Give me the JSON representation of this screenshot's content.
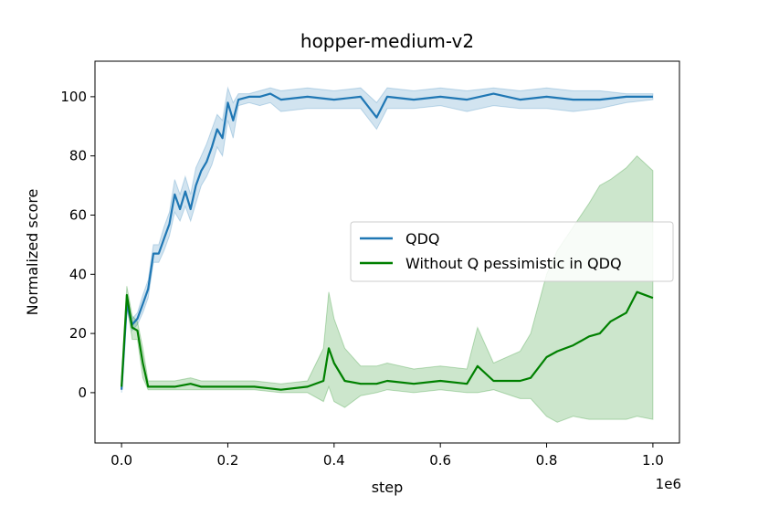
{
  "chart_data": {
    "type": "line",
    "title": "hopper-medium-v2",
    "xlabel": "step",
    "ylabel": "Normalized score",
    "x_offset_text": "1e6",
    "xlim": [
      -0.05,
      1.05
    ],
    "ylim": [
      -17,
      112
    ],
    "xticks": [
      0.0,
      0.2,
      0.4,
      0.6,
      0.8,
      1.0
    ],
    "xtick_labels": [
      "0.0",
      "0.2",
      "0.4",
      "0.6",
      "0.8",
      "1.0"
    ],
    "yticks": [
      0,
      20,
      40,
      60,
      80,
      100
    ],
    "ytick_labels": [
      "0",
      "20",
      "40",
      "60",
      "80",
      "100"
    ],
    "grid": false,
    "legend_position": "center-right",
    "series": [
      {
        "name": "QDQ",
        "color": "#1f77b4",
        "x": [
          0.0,
          0.01,
          0.02,
          0.03,
          0.04,
          0.05,
          0.06,
          0.07,
          0.08,
          0.09,
          0.1,
          0.11,
          0.12,
          0.13,
          0.14,
          0.15,
          0.16,
          0.17,
          0.18,
          0.19,
          0.2,
          0.21,
          0.22,
          0.24,
          0.26,
          0.28,
          0.3,
          0.35,
          0.4,
          0.45,
          0.48,
          0.5,
          0.55,
          0.6,
          0.65,
          0.7,
          0.75,
          0.8,
          0.85,
          0.9,
          0.95,
          1.0
        ],
        "y": [
          1,
          30,
          23,
          25,
          30,
          35,
          47,
          47,
          52,
          57,
          67,
          62,
          68,
          62,
          70,
          75,
          78,
          83,
          89,
          86,
          98,
          92,
          99,
          100,
          100,
          101,
          99,
          100,
          99,
          100,
          93,
          100,
          99,
          100,
          99,
          101,
          99,
          100,
          99,
          99,
          100,
          100
        ],
        "band_low": [
          0,
          28,
          21,
          23,
          27,
          32,
          44,
          44,
          48,
          53,
          61,
          58,
          63,
          58,
          64,
          70,
          73,
          77,
          83,
          80,
          92,
          86,
          97,
          98,
          97,
          98,
          95,
          96,
          96,
          96,
          89,
          96,
          96,
          97,
          95,
          97,
          96,
          96,
          95,
          96,
          98,
          99
        ],
        "band_high": [
          2,
          32,
          25,
          27,
          33,
          38,
          50,
          50,
          56,
          61,
          72,
          67,
          73,
          67,
          76,
          80,
          84,
          89,
          94,
          92,
          103,
          98,
          101,
          101,
          102,
          103,
          102,
          103,
          102,
          103,
          98,
          103,
          102,
          103,
          102,
          103,
          102,
          103,
          102,
          102,
          101,
          101
        ]
      },
      {
        "name": "Without Q pessimistic in QDQ",
        "color": "#008000",
        "x": [
          0.0,
          0.01,
          0.02,
          0.03,
          0.04,
          0.05,
          0.08,
          0.1,
          0.13,
          0.15,
          0.2,
          0.25,
          0.3,
          0.35,
          0.38,
          0.39,
          0.4,
          0.42,
          0.45,
          0.48,
          0.5,
          0.55,
          0.6,
          0.65,
          0.67,
          0.7,
          0.75,
          0.77,
          0.8,
          0.82,
          0.85,
          0.88,
          0.9,
          0.92,
          0.95,
          0.97,
          1.0
        ],
        "y": [
          2,
          33,
          22,
          21,
          10,
          2,
          2,
          2,
          3,
          2,
          2,
          2,
          1,
          2,
          4,
          15,
          10,
          4,
          3,
          3,
          4,
          3,
          4,
          3,
          9,
          4,
          4,
          5,
          12,
          14,
          16,
          19,
          20,
          24,
          27,
          34,
          32
        ],
        "band_low": [
          1,
          30,
          18,
          18,
          5,
          1,
          1,
          1,
          1,
          1,
          1,
          1,
          0,
          0,
          -3,
          2,
          -3,
          -5,
          -1,
          0,
          1,
          0,
          1,
          0,
          0,
          1,
          -2,
          -2,
          -8,
          -10,
          -8,
          -9,
          -9,
          -9,
          -9,
          -8,
          -9
        ],
        "band_high": [
          4,
          36,
          26,
          24,
          15,
          4,
          4,
          4,
          5,
          4,
          4,
          4,
          3,
          4,
          15,
          34,
          25,
          15,
          9,
          9,
          10,
          8,
          9,
          8,
          22,
          10,
          14,
          20,
          40,
          48,
          56,
          64,
          70,
          72,
          76,
          80,
          75
        ]
      }
    ]
  }
}
